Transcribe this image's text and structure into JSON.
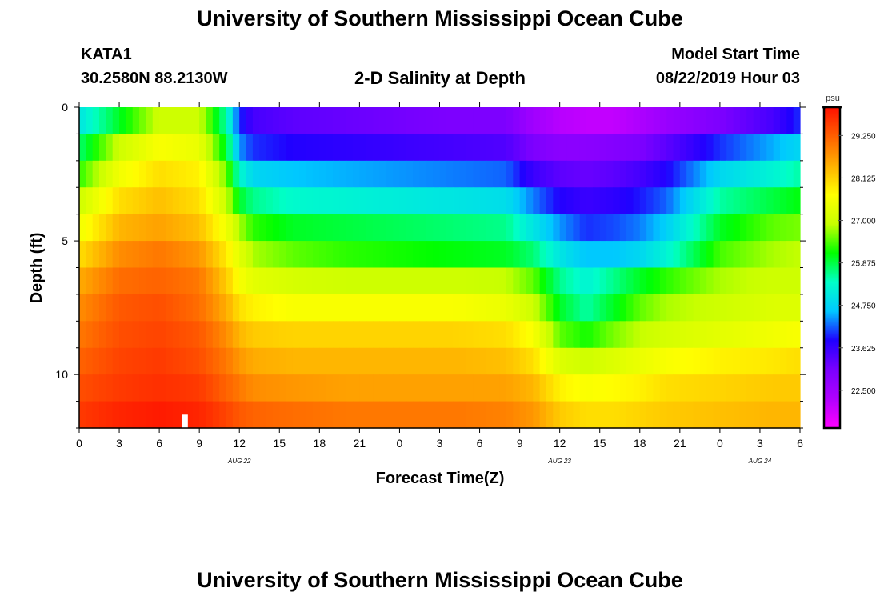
{
  "header": {
    "title_top": "University of Southern Mississippi Ocean Cube",
    "title_bottom": "University of Southern Mississippi Ocean Cube",
    "station": "KATA1",
    "coords": "30.2580N 88.2130W",
    "plot_title": "2-D Salinity at Depth",
    "model_label": "Model Start Time",
    "model_time": "08/22/2019 Hour 03"
  },
  "chart_data": {
    "type": "heatmap",
    "title": "2-D Salinity at Depth",
    "xlabel": "Forecast Time(Z)",
    "ylabel": "Depth (ft)",
    "x_ticks": [
      "0",
      "3",
      "6",
      "9",
      "12",
      "15",
      "18",
      "21",
      "0",
      "3",
      "6",
      "9",
      "12",
      "15",
      "18",
      "21",
      "0",
      "3",
      "6"
    ],
    "x_range_hours": [
      0,
      54
    ],
    "date_labels": [
      {
        "text": "AUG  22",
        "hour": 12
      },
      {
        "text": "AUG  23",
        "hour": 36
      },
      {
        "text": "AUG  24",
        "hour": 51
      }
    ],
    "y_ticks": [
      "0",
      "5",
      "10"
    ],
    "y_range_ft": [
      0,
      12
    ],
    "colorbar": {
      "unit": "psu",
      "min": 21.5,
      "max": 30.0,
      "tick_labels": [
        "29.250",
        "28.125",
        "27.000",
        "25.875",
        "24.750",
        "23.625",
        "22.500"
      ],
      "tick_values": [
        29.25,
        28.125,
        27.0,
        25.875,
        24.75,
        23.625,
        22.5
      ],
      "colors": [
        "#ff00ff",
        "#b000ff",
        "#7a00ff",
        "#2000ff",
        "#00c8ff",
        "#00ffc8",
        "#00ff00",
        "#c8ff00",
        "#ffff00",
        "#ffb000",
        "#ff6000",
        "#ff1000"
      ]
    },
    "depth_rows_ft": [
      0.5,
      1.5,
      2.5,
      3.5,
      4.5,
      5.5,
      6.5,
      7.5,
      8.5,
      9.5,
      10.5,
      11.5
    ],
    "time_knots_hours": [
      0,
      3,
      6,
      9,
      11,
      12,
      13,
      16,
      20,
      24,
      28,
      32,
      34,
      36,
      38,
      40,
      42,
      44,
      48,
      52,
      54
    ],
    "salinity_psu": [
      [
        25.0,
        26.0,
        27.0,
        27.0,
        25.5,
        24.0,
        23.5,
        23.3,
        23.2,
        23.1,
        23.0,
        23.0,
        22.5,
        22.2,
        22.1,
        22.1,
        22.3,
        22.6,
        23.0,
        23.5,
        24.0
      ],
      [
        25.7,
        27.0,
        27.6,
        27.4,
        26.0,
        24.4,
        24.0,
        23.8,
        23.7,
        23.6,
        23.5,
        23.4,
        23.0,
        22.8,
        22.8,
        22.9,
        23.0,
        23.3,
        24.0,
        24.5,
        24.8
      ],
      [
        26.3,
        27.5,
        28.0,
        27.8,
        26.6,
        25.3,
        24.8,
        24.6,
        24.5,
        24.4,
        24.3,
        24.2,
        23.6,
        23.3,
        23.2,
        23.3,
        23.5,
        23.8,
        24.8,
        25.2,
        25.5
      ],
      [
        27.0,
        28.0,
        28.3,
        28.0,
        27.0,
        26.0,
        25.6,
        25.3,
        25.2,
        25.1,
        25.0,
        24.9,
        24.3,
        23.8,
        23.6,
        23.7,
        23.9,
        24.2,
        25.5,
        25.9,
        26.1
      ],
      [
        27.5,
        28.4,
        28.6,
        28.3,
        27.5,
        26.8,
        26.3,
        26.0,
        25.9,
        25.8,
        25.7,
        25.6,
        25.0,
        24.4,
        24.0,
        24.1,
        24.3,
        24.7,
        26.0,
        26.5,
        26.6
      ],
      [
        28.0,
        28.8,
        29.0,
        28.7,
        27.9,
        27.3,
        26.8,
        26.5,
        26.3,
        26.2,
        26.1,
        26.0,
        25.7,
        25.0,
        24.6,
        24.6,
        24.8,
        25.2,
        26.4,
        26.8,
        26.9
      ],
      [
        28.5,
        29.1,
        29.2,
        29.0,
        28.2,
        27.6,
        27.3,
        27.1,
        27.0,
        27.0,
        27.0,
        26.9,
        26.5,
        25.6,
        25.2,
        25.6,
        26.0,
        26.3,
        26.8,
        27.0,
        27.0
      ],
      [
        28.8,
        29.3,
        29.4,
        29.1,
        28.5,
        28.0,
        27.8,
        27.6,
        27.6,
        27.6,
        27.6,
        27.4,
        27.0,
        26.0,
        25.5,
        26.0,
        26.5,
        26.8,
        27.0,
        27.2,
        27.2
      ],
      [
        29.0,
        29.4,
        29.5,
        29.3,
        28.8,
        28.4,
        28.2,
        28.1,
        28.1,
        28.1,
        28.1,
        28.0,
        27.6,
        26.5,
        26.2,
        26.6,
        26.9,
        27.1,
        27.3,
        27.5,
        27.6
      ],
      [
        29.2,
        29.5,
        29.6,
        29.4,
        29.0,
        28.7,
        28.5,
        28.4,
        28.4,
        28.4,
        28.4,
        28.3,
        28.0,
        27.2,
        27.0,
        27.2,
        27.4,
        27.6,
        27.8,
        27.9,
        28.0
      ],
      [
        29.4,
        29.6,
        29.7,
        29.6,
        29.2,
        29.0,
        28.8,
        28.7,
        28.6,
        28.6,
        28.6,
        28.6,
        28.4,
        27.8,
        27.6,
        27.7,
        27.8,
        28.0,
        28.1,
        28.2,
        28.2
      ],
      [
        29.6,
        29.8,
        29.9,
        29.8,
        29.5,
        29.3,
        29.2,
        29.1,
        29.0,
        29.0,
        29.0,
        28.9,
        28.7,
        28.2,
        28.0,
        28.0,
        28.1,
        28.2,
        28.3,
        28.4,
        28.4
      ]
    ]
  }
}
